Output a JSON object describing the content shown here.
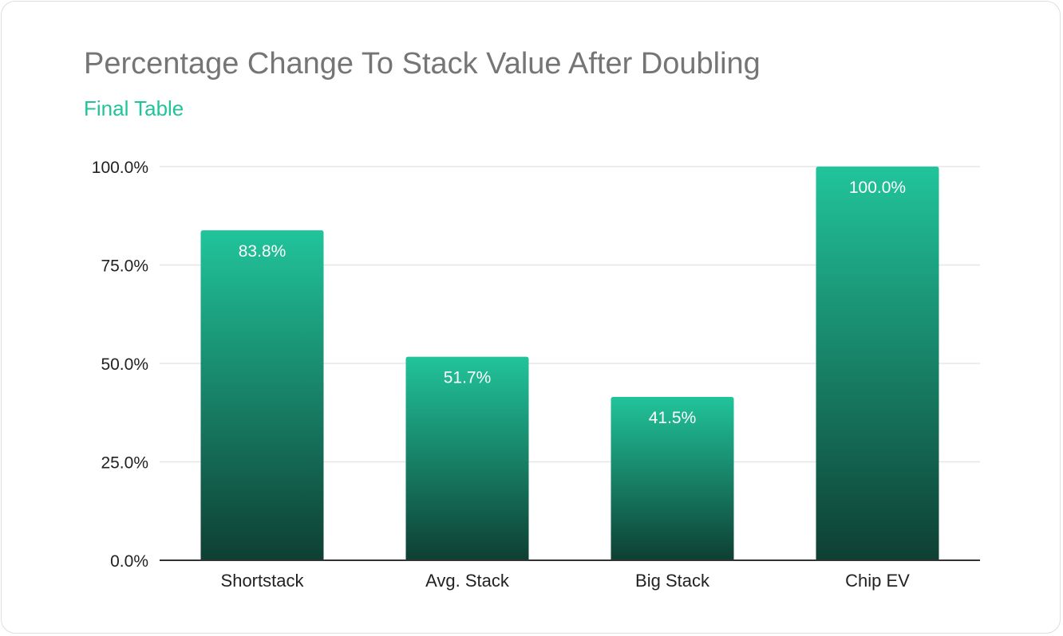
{
  "title": "Percentage Change To Stack Value After Doubling",
  "subtitle": "Final Table",
  "colors": {
    "title": "#757575",
    "subtitle": "#20c49a",
    "bar_top": "#21c49b",
    "bar_bottom": "#0e3f33",
    "grid": "#e6e6e6",
    "axis": "#333333"
  },
  "chart_data": {
    "type": "bar",
    "title": "Percentage Change To Stack Value After Doubling",
    "subtitle": "Final Table",
    "categories": [
      "Shortstack",
      "Avg. Stack",
      "Big Stack",
      "Chip EV"
    ],
    "values": [
      83.8,
      51.7,
      41.5,
      100.0
    ],
    "data_labels": [
      "83.8%",
      "51.7%",
      "41.5%",
      "100.0%"
    ],
    "yticks": [
      0,
      25,
      50,
      75,
      100
    ],
    "ytick_labels": [
      "0.0%",
      "25.0%",
      "50.0%",
      "75.0%",
      "100.0%"
    ],
    "ylim": [
      0,
      100
    ],
    "xlabel": "",
    "ylabel": "",
    "grid": true,
    "legend": "none"
  }
}
